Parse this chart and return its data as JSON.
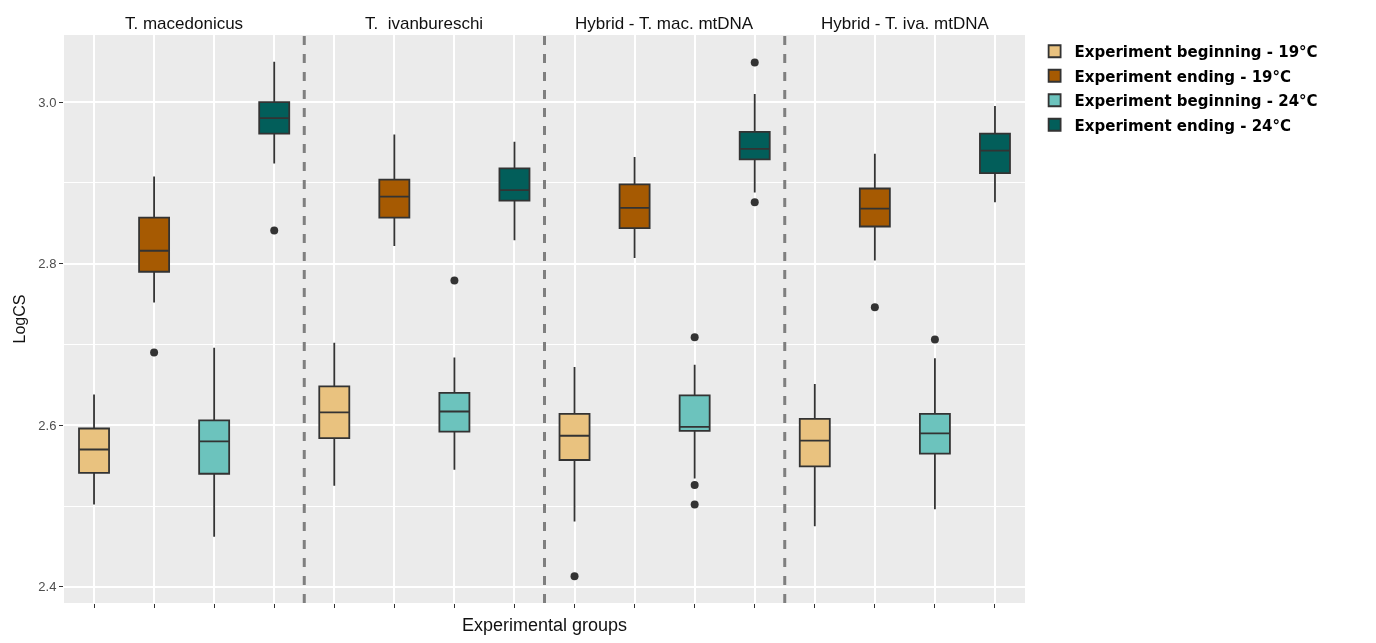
{
  "chart_data": {
    "type": "box",
    "xlabel": "Experimental groups",
    "ylabel": "LogCS",
    "categories": [
      null,
      null,
      null,
      null,
      null,
      null,
      null,
      null,
      null,
      null,
      null,
      null,
      null,
      null,
      null,
      null
    ],
    "annotations": [
      "T. macedonicus",
      "T.  ivanbureschi",
      "Hybrid - T. mac. mtDNA",
      "Hybrid - T. iva. mtDNA"
    ],
    "series": [
      {
        "name": "Experiment beginning - 19°C",
        "color": "#e9c27f",
        "boxes": [
          {
            "low": 2.502,
            "q1": 2.541,
            "median": 2.57,
            "q3": 2.596,
            "high": 2.638
          },
          null,
          null,
          null,
          {
            "low": 2.525,
            "q1": 2.584,
            "median": 2.616,
            "q3": 2.648,
            "high": 2.702
          },
          null,
          null,
          null,
          {
            "low": 2.481,
            "q1": 2.557,
            "median": 2.587,
            "q3": 2.614,
            "high": 2.672,
            "outliers": [
              2.413
            ]
          },
          null,
          null,
          null,
          {
            "low": 2.475,
            "q1": 2.549,
            "median": 2.581,
            "q3": 2.608,
            "high": 2.651
          },
          null,
          null,
          null
        ]
      },
      {
        "name": "Experiment ending - 19°C",
        "color": "#a65a02",
        "boxes": [
          null,
          {
            "low": 2.752,
            "q1": 2.79,
            "median": 2.816,
            "q3": 2.857,
            "high": 2.908,
            "outliers": [
              2.69
            ]
          },
          null,
          null,
          null,
          {
            "low": 2.822,
            "q1": 2.857,
            "median": 2.883,
            "q3": 2.904,
            "high": 2.96
          },
          null,
          null,
          null,
          {
            "low": 2.807,
            "q1": 2.844,
            "median": 2.869,
            "q3": 2.898,
            "high": 2.932
          },
          null,
          null,
          null,
          {
            "low": 2.804,
            "q1": 2.846,
            "median": 2.868,
            "q3": 2.893,
            "high": 2.936,
            "outliers": [
              2.746
            ]
          },
          null,
          null
        ]
      },
      {
        "name": "Experiment beginning - 24°C",
        "color": "#6cc3bd",
        "boxes": [
          null,
          null,
          {
            "low": 2.462,
            "q1": 2.54,
            "median": 2.58,
            "q3": 2.606,
            "high": 2.696
          },
          null,
          null,
          null,
          {
            "low": 2.545,
            "q1": 2.592,
            "median": 2.617,
            "q3": 2.64,
            "high": 2.684,
            "outliers": [
              2.779
            ]
          },
          null,
          null,
          null,
          {
            "low": 2.534,
            "q1": 2.593,
            "median": 2.598,
            "q3": 2.637,
            "high": 2.675,
            "outliers": [
              2.709,
              2.526,
              2.502
            ]
          },
          null,
          null,
          null,
          {
            "low": 2.496,
            "q1": 2.565,
            "median": 2.59,
            "q3": 2.614,
            "high": 2.683,
            "outliers": [
              2.706
            ]
          },
          null
        ]
      },
      {
        "name": "Experiment ending - 24°C",
        "color": "#025e5a",
        "boxes": [
          null,
          null,
          null,
          {
            "low": 2.924,
            "q1": 2.961,
            "median": 2.98,
            "q3": 3.0,
            "high": 3.05,
            "outliers": [
              2.841
            ]
          },
          null,
          null,
          null,
          {
            "low": 2.829,
            "q1": 2.878,
            "median": 2.891,
            "q3": 2.918,
            "high": 2.951
          },
          null,
          null,
          null,
          {
            "low": 2.888,
            "q1": 2.929,
            "median": 2.942,
            "q3": 2.963,
            "high": 3.01,
            "outliers": [
              3.049,
              2.876
            ]
          },
          null,
          null,
          null,
          {
            "low": 2.876,
            "q1": 2.912,
            "median": 2.94,
            "q3": 2.961,
            "high": 2.995
          }
        ]
      }
    ],
    "ylim": [
      2.38,
      3.083
    ],
    "yticks": [
      2.4,
      2.6,
      2.8,
      {
        "value": 3.0,
        "label": "3.0"
      }
    ],
    "grid": true,
    "legend": "top right",
    "tick_labels": "y"
  }
}
